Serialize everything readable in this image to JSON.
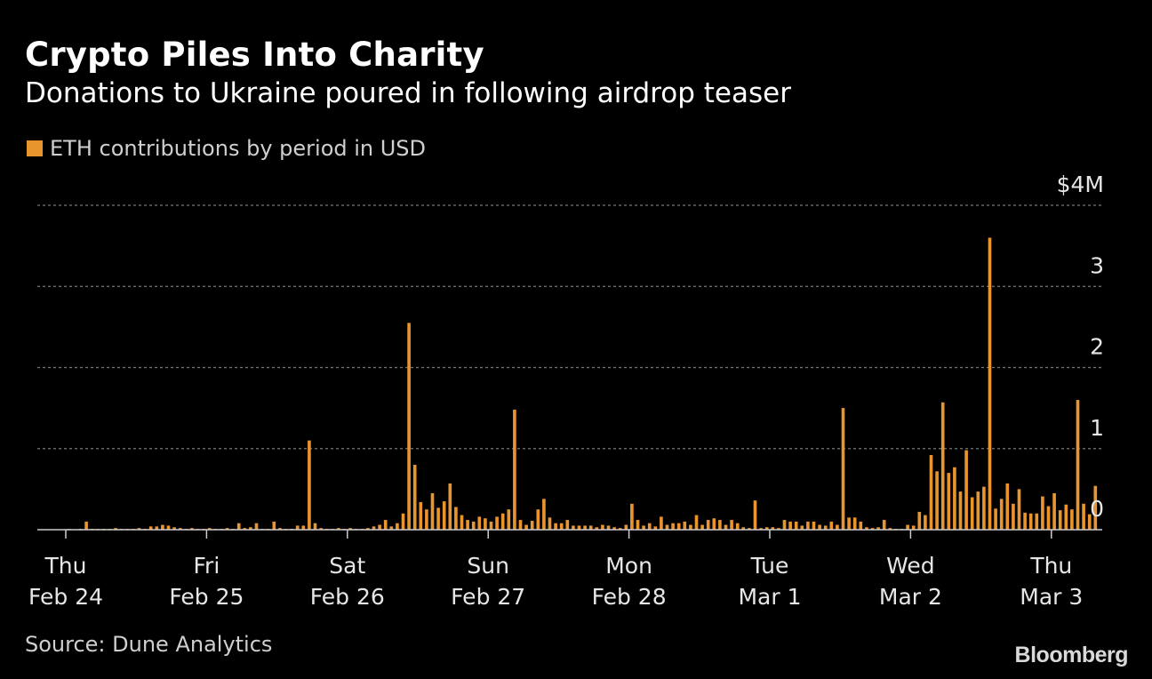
{
  "title": "Crypto Piles Into Charity",
  "subtitle": "Donations to Ukraine poured in following airdrop teaser",
  "source": "Source: Dune Analytics",
  "logo": "Bloomberg",
  "colors": {
    "bar": "#e8952e",
    "background": "#000000",
    "grid": "#777777",
    "axis": "#cccccc"
  },
  "chart_data": {
    "type": "bar",
    "legend": "ETH contributions by period in USD",
    "legend_position": "top-left",
    "ylim": [
      0,
      4
    ],
    "y_unit": "million USD",
    "y_ticks": [
      {
        "value": 4,
        "label": "$4M"
      },
      {
        "value": 3,
        "label": "3"
      },
      {
        "value": 2,
        "label": "2"
      },
      {
        "value": 1,
        "label": "1"
      },
      {
        "value": 0,
        "label": "0"
      }
    ],
    "grid": true,
    "x_ticks": [
      {
        "day": "Thu",
        "date": "Feb 24"
      },
      {
        "day": "Fri",
        "date": "Feb 25"
      },
      {
        "day": "Sat",
        "date": "Feb 26"
      },
      {
        "day": "Sun",
        "date": "Feb 27"
      },
      {
        "day": "Mon",
        "date": "Feb 28"
      },
      {
        "day": "Tue",
        "date": "Mar 1"
      },
      {
        "day": "Wed",
        "date": "Mar 2"
      },
      {
        "day": "Thu",
        "date": "Mar 3"
      }
    ],
    "x_start": "Thu Feb 24",
    "periods_per_day": 24,
    "values": [
      0.01,
      0,
      0.01,
      0.1,
      0.01,
      0.01,
      0.01,
      0.01,
      0.02,
      0.01,
      0.01,
      0.01,
      0.02,
      0.01,
      0.04,
      0.04,
      0.06,
      0.05,
      0.03,
      0.02,
      0.01,
      0.02,
      0.01,
      0.01,
      0.02,
      0.01,
      0.01,
      0.02,
      0.01,
      0.08,
      0.02,
      0.03,
      0.08,
      0.01,
      0.01,
      0.1,
      0.02,
      0.01,
      0.01,
      0.05,
      0.05,
      1.1,
      0.08,
      0.02,
      0.01,
      0.01,
      0.02,
      0.01,
      0.02,
      0.01,
      0.01,
      0.02,
      0.04,
      0.06,
      0.12,
      0.04,
      0.08,
      0.2,
      2.55,
      0.8,
      0.34,
      0.25,
      0.45,
      0.27,
      0.35,
      0.57,
      0.28,
      0.18,
      0.12,
      0.1,
      0.16,
      0.14,
      0.1,
      0.16,
      0.2,
      0.25,
      1.48,
      0.12,
      0.06,
      0.11,
      0.25,
      0.38,
      0.15,
      0.08,
      0.08,
      0.12,
      0.05,
      0.05,
      0.05,
      0.05,
      0.03,
      0.06,
      0.05,
      0.03,
      0.02,
      0.06,
      0.32,
      0.12,
      0.05,
      0.08,
      0.04,
      0.16,
      0.06,
      0.08,
      0.08,
      0.1,
      0.06,
      0.18,
      0.06,
      0.12,
      0.14,
      0.12,
      0.06,
      0.12,
      0.08,
      0.03,
      0.02,
      0.36,
      0.02,
      0.03,
      0.03,
      0.02,
      0.12,
      0.1,
      0.1,
      0.05,
      0.1,
      0.1,
      0.06,
      0.05,
      0.1,
      0.06,
      1.5,
      0.15,
      0.15,
      0.1,
      0.03,
      0.02,
      0.03,
      0.12,
      0.02,
      0.01,
      0.01,
      0.06,
      0.05,
      0.22,
      0.18,
      0.92,
      0.72,
      1.57,
      0.7,
      0.77,
      0.47,
      0.98,
      0.4,
      0.47,
      0.53,
      3.6,
      0.26,
      0.38,
      0.57,
      0.32,
      0.5,
      0.21,
      0.2,
      0.2,
      0.41,
      0.29,
      0.45,
      0.24,
      0.31,
      0.25,
      1.6,
      0.32,
      0.19,
      0.54
    ]
  }
}
